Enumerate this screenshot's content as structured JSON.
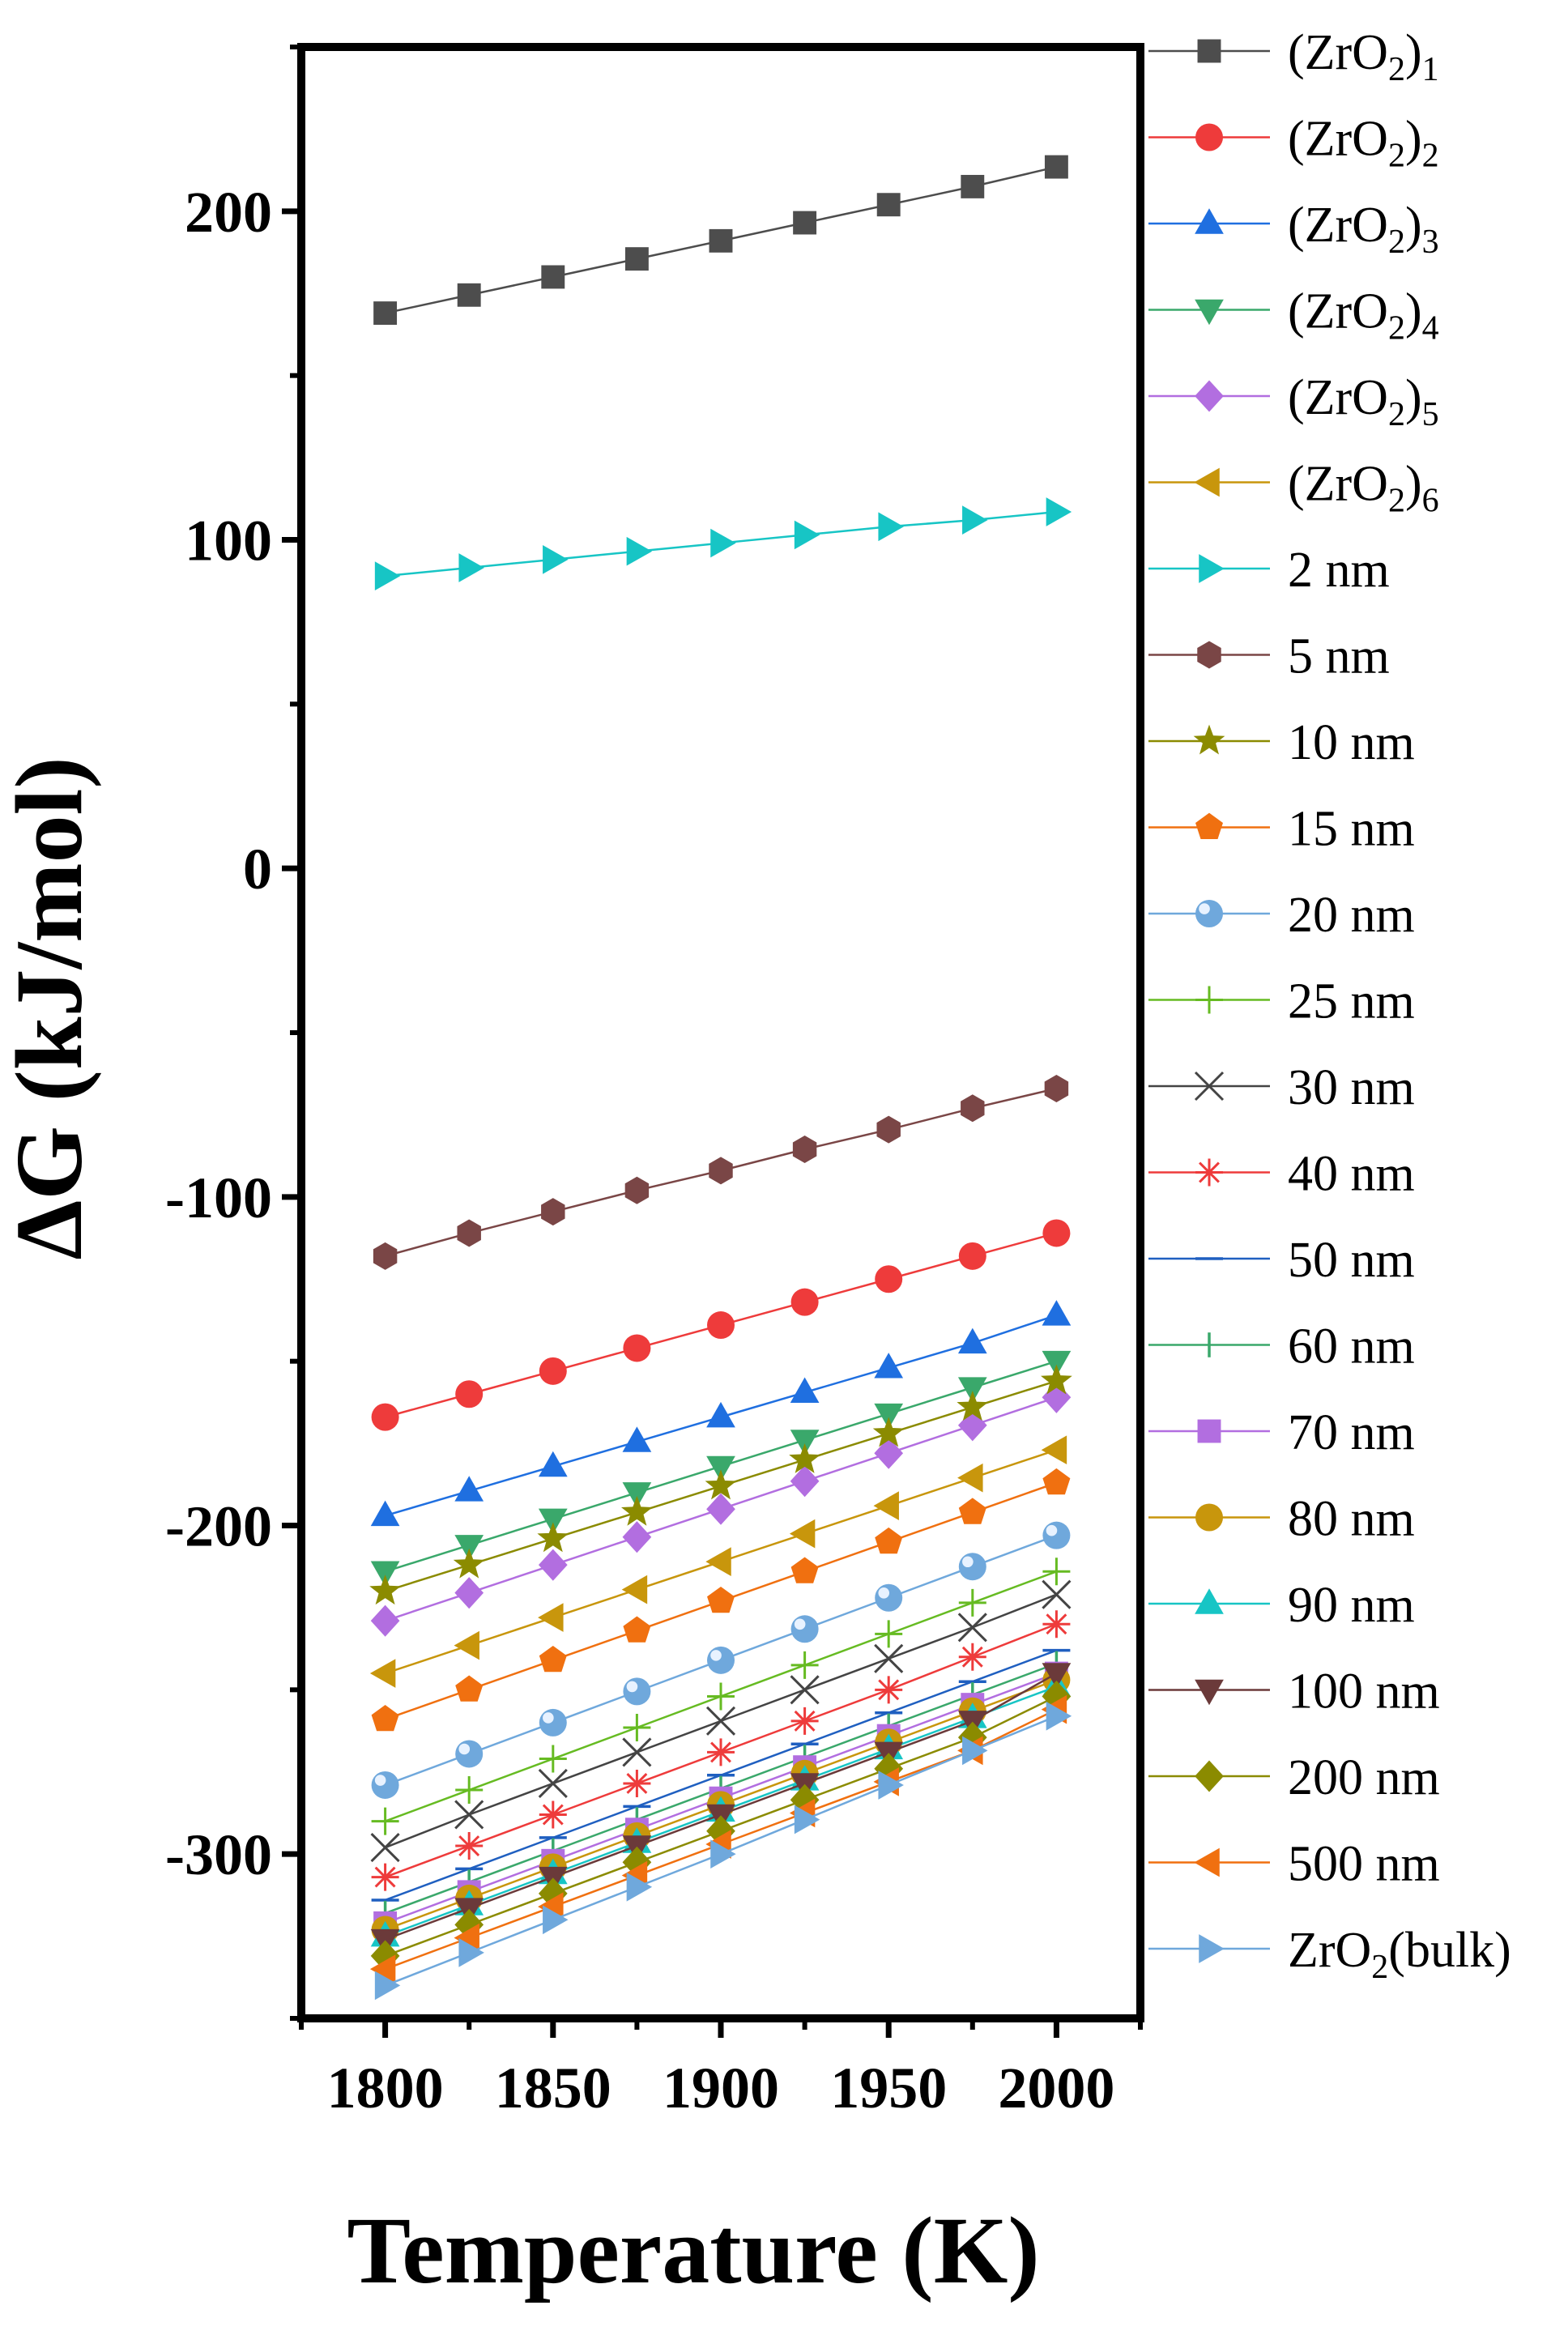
{
  "chart_data": {
    "type": "line",
    "title": "",
    "xlabel": "Temperature (K)",
    "ylabel": "ΔG (kJ/mol)",
    "xlim": [
      1775,
      2025
    ],
    "ylim": [
      -350,
      250
    ],
    "xticks": [
      1800,
      1850,
      1900,
      1950,
      2000
    ],
    "yticks": [
      -300,
      -200,
      -100,
      0,
      100,
      200
    ],
    "grid": false,
    "legend_position": "right",
    "x": [
      1800,
      1825,
      1850,
      1875,
      1900,
      1925,
      1950,
      1975,
      2000
    ],
    "series": [
      {
        "name": "(ZrO2)1",
        "base": "(ZrO",
        "sub1": "2",
        "close": ")",
        "sub2": "1",
        "color": "#4d4d4d",
        "marker": "square",
        "values": [
          169,
          174.5,
          180,
          185.5,
          191,
          196.5,
          202,
          207.5,
          213.5
        ]
      },
      {
        "name": "(ZrO2)2",
        "base": "(ZrO",
        "sub1": "2",
        "close": ")",
        "sub2": "2",
        "color": "#ee3b3b",
        "marker": "circle",
        "values": [
          -167,
          -160,
          -153,
          -146,
          -139,
          -132,
          -125,
          -118,
          -111
        ]
      },
      {
        "name": "(ZrO2)3",
        "base": "(ZrO",
        "sub1": "2",
        "close": ")",
        "sub2": "3",
        "color": "#1f6fe0",
        "marker": "triangle-up",
        "values": [
          -197,
          -189.5,
          -182,
          -174.5,
          -167,
          -159.5,
          -152,
          -144.5,
          -136
        ]
      },
      {
        "name": "(ZrO2)4",
        "base": "(ZrO",
        "sub1": "2",
        "close": ")",
        "sub2": "4",
        "color": "#3aa86b",
        "marker": "triangle-down",
        "values": [
          -214,
          -206,
          -198,
          -190,
          -182,
          -174,
          -166,
          -158,
          -150
        ]
      },
      {
        "name": "(ZrO2)5",
        "base": "(ZrO",
        "sub1": "2",
        "close": ")",
        "sub2": "5",
        "color": "#b26ee0",
        "marker": "diamond",
        "values": [
          -229,
          -220.5,
          -212,
          -203.5,
          -195,
          -186.5,
          -178,
          -169.5,
          -161
        ]
      },
      {
        "name": "(ZrO2)6",
        "base": "(ZrO",
        "sub1": "2",
        "close": ")",
        "sub2": "6",
        "color": "#c8960c",
        "marker": "triangle-left",
        "values": [
          -245,
          -236.5,
          -228,
          -219.5,
          -211,
          -202.5,
          -194,
          -185.5,
          -177
        ]
      },
      {
        "name": "2 nm",
        "color": "#17c5c5",
        "marker": "triangle-right",
        "values": [
          89,
          91.5,
          94,
          96.5,
          99,
          101.5,
          104,
          106,
          108.5
        ]
      },
      {
        "name": "5 nm",
        "color": "#7a4646",
        "marker": "hexagon",
        "values": [
          -118,
          -111,
          -104.5,
          -98,
          -92,
          -85.5,
          -79.5,
          -73,
          -67
        ]
      },
      {
        "name": "10 nm",
        "color": "#8b8b00",
        "marker": "star",
        "values": [
          -220,
          -212,
          -204,
          -196,
          -188,
          -180,
          -172,
          -164,
          -156
        ]
      },
      {
        "name": "15 nm",
        "color": "#f07010",
        "marker": "pentagon",
        "values": [
          -259,
          -250,
          -241,
          -232,
          -223,
          -214,
          -205,
          -196,
          -187
        ]
      },
      {
        "name": "20 nm",
        "color": "#6fa8dc",
        "marker": "sphere",
        "values": [
          -279,
          -269.5,
          -260,
          -250.5,
          -241,
          -231.5,
          -222,
          -212.5,
          -203
        ]
      },
      {
        "name": "25 nm",
        "color": "#66bb22",
        "marker": "plus",
        "values": [
          -290,
          -280.5,
          -271,
          -261.5,
          -252,
          -242.5,
          -233,
          -223.5,
          -214
        ]
      },
      {
        "name": "30 nm",
        "color": "#444444",
        "marker": "x",
        "values": [
          -298,
          -288,
          -278.5,
          -269,
          -259.5,
          -250,
          -240.5,
          -231,
          -221
        ]
      },
      {
        "name": "40 nm",
        "color": "#ee3b3b",
        "marker": "asterisk",
        "values": [
          -307,
          -297.5,
          -288,
          -278.5,
          -269,
          -259.5,
          -250,
          -240,
          -230
        ]
      },
      {
        "name": "50 nm",
        "color": "#1f5fc0",
        "marker": "hline",
        "values": [
          -314,
          -304.5,
          -295,
          -285.5,
          -276,
          -266.5,
          -257,
          -247.5,
          -238
        ]
      },
      {
        "name": "60 nm",
        "color": "#3aa86b",
        "marker": "vline",
        "values": [
          -318,
          -308.5,
          -299,
          -289.5,
          -280,
          -270.5,
          -261,
          -251.5,
          -242
        ]
      },
      {
        "name": "70 nm",
        "color": "#b26ee0",
        "marker": "square",
        "values": [
          -321,
          -311.5,
          -302,
          -292.5,
          -283,
          -273.5,
          -264,
          -254.5,
          -245
        ]
      },
      {
        "name": "80 nm",
        "color": "#c8960c",
        "marker": "circle",
        "values": [
          -323,
          -313.5,
          -304,
          -294.5,
          -285,
          -275.5,
          -266,
          -256.5,
          -247
        ]
      },
      {
        "name": "90 nm",
        "color": "#17c5c5",
        "marker": "triangle-up",
        "values": [
          -325,
          -315.5,
          -306,
          -296.5,
          -287,
          -277.5,
          -268,
          -258.5,
          -249
        ]
      },
      {
        "name": "100 nm",
        "color": "#6b3a3a",
        "marker": "triangle-down",
        "values": [
          -326,
          -316.5,
          -307,
          -297.5,
          -288,
          -278.5,
          -269,
          -259.5,
          -245
        ]
      },
      {
        "name": "200 nm",
        "color": "#8b8b00",
        "marker": "diamond",
        "values": [
          -331,
          -321.5,
          -312,
          -302.5,
          -293,
          -283.5,
          -274,
          -264.5,
          -252
        ]
      },
      {
        "name": "500 nm",
        "color": "#f07010",
        "marker": "triangle-left",
        "values": [
          -335,
          -325.5,
          -316,
          -306.5,
          -297,
          -287.5,
          -278,
          -268.5,
          -256
        ]
      },
      {
        "name": "ZrO2(bulk)",
        "base": "ZrO",
        "sub1": "2",
        "close": "(bulk)",
        "color": "#6fa8dc",
        "marker": "triangle-right",
        "values": [
          -340,
          -330,
          -320,
          -310,
          -300,
          -289.5,
          -279,
          -268.5,
          -258
        ]
      }
    ]
  }
}
